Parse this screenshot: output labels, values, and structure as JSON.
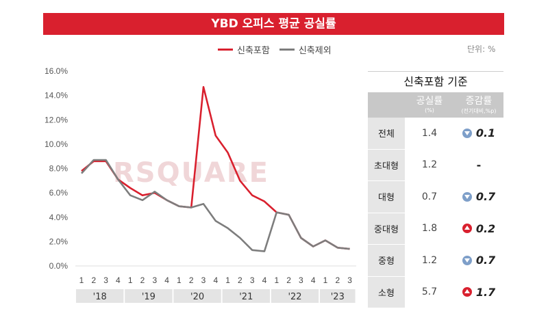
{
  "title": "YBD 오피스 평균 공실률",
  "unit_label": "단위: %",
  "watermark": "RSQUARE",
  "colors": {
    "title_bg": "#d9202e",
    "incl": "#d9202e",
    "excl": "#7d7d7d"
  },
  "chart_data": {
    "type": "line",
    "title": "YBD 오피스 평균 공실률",
    "yticks": [
      "16.0%",
      "14.0%",
      "12.0%",
      "10.0%",
      "8.0%",
      "6.0%",
      "4.0%",
      "2.0%",
      "0.0%"
    ],
    "ylim": [
      0,
      16
    ],
    "quarters": [
      "1",
      "2",
      "3",
      "4",
      "1",
      "2",
      "3",
      "4",
      "1",
      "2",
      "3",
      "4",
      "1",
      "2",
      "3",
      "4",
      "1",
      "2",
      "3",
      "4",
      "1",
      "2",
      "3"
    ],
    "years": [
      "'18",
      "'19",
      "'20",
      "'21",
      "'22",
      "'23"
    ],
    "legend": [
      "신축포함",
      "신축제외"
    ],
    "series": [
      {
        "name": "신축포함",
        "values": [
          7.8,
          8.6,
          8.6,
          7.1,
          6.4,
          5.8,
          6.0,
          5.4,
          4.9,
          4.8,
          14.7,
          10.7,
          9.3,
          7.0,
          5.8,
          5.3,
          4.4,
          4.2,
          2.3,
          1.6,
          2.1,
          1.5,
          1.4
        ]
      },
      {
        "name": "신축제외",
        "values": [
          7.6,
          8.7,
          8.7,
          7.1,
          5.8,
          5.4,
          6.1,
          5.4,
          4.9,
          4.8,
          5.1,
          3.7,
          3.1,
          2.3,
          1.3,
          1.2,
          4.4,
          4.2,
          2.3,
          1.6,
          2.1,
          1.5,
          1.4
        ]
      }
    ]
  },
  "table": {
    "title": "신축포함 기준",
    "col1": "공실률",
    "col1_sub": "(%)",
    "col2": "증감률",
    "col2_sub": "(전기대비,%p)",
    "rows": [
      {
        "cat": "전체",
        "val": "1.4",
        "dir": "down",
        "chg": "0.1"
      },
      {
        "cat": "초대형",
        "val": "1.2",
        "dir": "none",
        "chg": "-"
      },
      {
        "cat": "대형",
        "val": "0.7",
        "dir": "down",
        "chg": "0.7"
      },
      {
        "cat": "중대형",
        "val": "1.8",
        "dir": "up",
        "chg": "0.2"
      },
      {
        "cat": "중형",
        "val": "1.2",
        "dir": "down",
        "chg": "0.7"
      },
      {
        "cat": "소형",
        "val": "5.7",
        "dir": "up",
        "chg": "1.7"
      }
    ]
  }
}
